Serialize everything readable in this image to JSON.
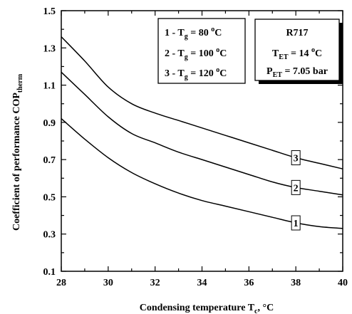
{
  "chart_data": {
    "type": "line",
    "xlabel": "Condensing temperature T",
    "xlabel_sub": "c",
    "xlabel_unit": ", °C",
    "ylabel": "Coefficient of performance COP",
    "ylabel_sub": "therm",
    "xlim": [
      28,
      40
    ],
    "ylim": [
      0.1,
      1.5
    ],
    "x_ticks": [
      28,
      30,
      32,
      34,
      36,
      38,
      40
    ],
    "x_tick_labels": [
      "28",
      "30",
      "32",
      "34",
      "36",
      "38",
      "40"
    ],
    "y_ticks": [
      0.1,
      0.3,
      0.5,
      0.7,
      0.9,
      1.1,
      1.3,
      1.5
    ],
    "y_tick_labels": [
      "0.1",
      "0.3",
      "0.5",
      "0.7",
      "0.9",
      "1.1",
      "1.3",
      "1.5"
    ],
    "grid": false,
    "x": [
      28,
      29,
      30,
      31,
      32,
      33,
      34,
      35,
      36,
      37,
      38,
      39,
      40
    ],
    "series": [
      {
        "label": "1",
        "tag_x": 38,
        "values": [
          0.92,
          0.81,
          0.71,
          0.63,
          0.57,
          0.52,
          0.48,
          0.45,
          0.42,
          0.39,
          0.36,
          0.34,
          0.33
        ]
      },
      {
        "label": "2",
        "tag_x": 38,
        "values": [
          1.17,
          1.05,
          0.93,
          0.84,
          0.79,
          0.74,
          0.7,
          0.66,
          0.62,
          0.58,
          0.55,
          0.53,
          0.51
        ]
      },
      {
        "label": "3",
        "tag_x": 38,
        "values": [
          1.36,
          1.23,
          1.09,
          1.0,
          0.95,
          0.91,
          0.87,
          0.83,
          0.79,
          0.75,
          0.71,
          0.68,
          0.65
        ]
      }
    ],
    "legend": [
      {
        "prefix": "1 - T",
        "sub": "g",
        "mid": " = 80 ",
        "sup": "o",
        "suffix": "C"
      },
      {
        "prefix": "2 - T",
        "sub": "g",
        "mid": " = 100 ",
        "sup": "o",
        "suffix": "C"
      },
      {
        "prefix": "3 - T",
        "sub": "g",
        "mid": " = 120 ",
        "sup": "o",
        "suffix": "C"
      }
    ],
    "info_box": {
      "refrigerant": "R717",
      "line1": {
        "prefix": "T",
        "sub": "ET",
        "mid": " = 14 ",
        "sup": "o",
        "suffix": "C"
      },
      "line2": {
        "prefix": "P",
        "sub": "ET",
        "mid": " = 7.05 bar",
        "sup": "",
        "suffix": ""
      }
    }
  }
}
